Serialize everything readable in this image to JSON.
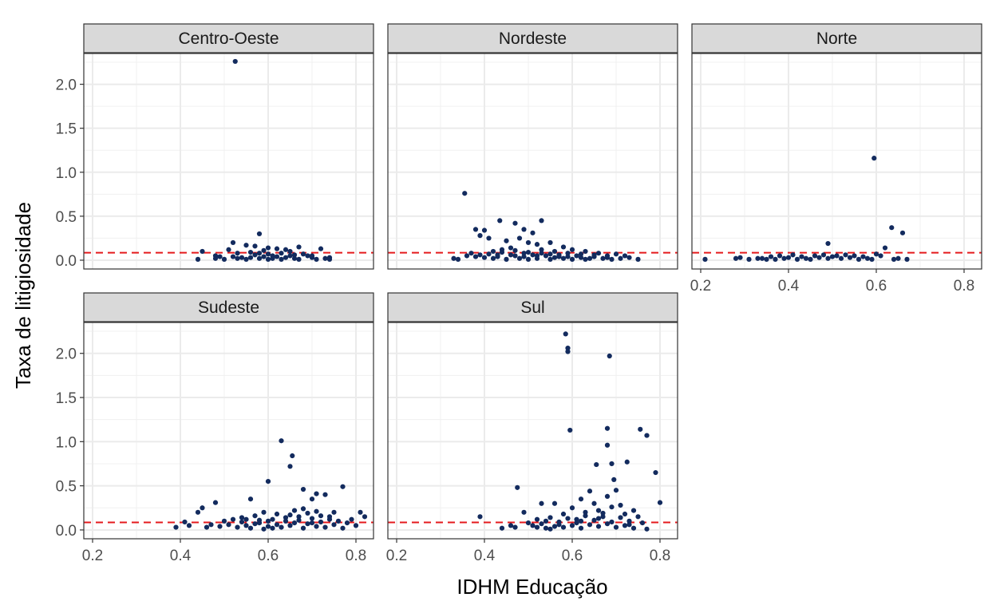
{
  "chart_data": {
    "type": "scatter",
    "facets": [
      "Centro-Oeste",
      "Nordeste",
      "Norte",
      "Sudeste",
      "Sul"
    ],
    "xlabel": "IDHM Educação",
    "ylabel": "Taxa de litigiosidade",
    "xlim": [
      0.18,
      0.84
    ],
    "ylim": [
      -0.1,
      2.35
    ],
    "x_ticks": [
      0.2,
      0.4,
      0.6,
      0.8
    ],
    "x_tick_labels": [
      "0.2",
      "0.4",
      "0.6",
      "0.8"
    ],
    "y_ticks": [
      0.0,
      0.5,
      1.0,
      1.5,
      2.0
    ],
    "y_tick_labels": [
      "0.0",
      "0.5",
      "1.0",
      "1.5",
      "2.0"
    ],
    "reference_line": {
      "y": 0.085,
      "color": "#e41a1c",
      "style": "dashed"
    },
    "point_color": "#132b5e",
    "grid": true,
    "panels": [
      {
        "name": "Centro-Oeste",
        "points": [
          [
            0.525,
            2.26
          ],
          [
            0.58,
            0.3
          ],
          [
            0.52,
            0.2
          ],
          [
            0.55,
            0.17
          ],
          [
            0.57,
            0.16
          ],
          [
            0.6,
            0.14
          ],
          [
            0.62,
            0.13
          ],
          [
            0.64,
            0.12
          ],
          [
            0.67,
            0.15
          ],
          [
            0.72,
            0.13
          ],
          [
            0.45,
            0.1
          ],
          [
            0.48,
            0.05
          ],
          [
            0.49,
            0.04
          ],
          [
            0.44,
            0.01
          ],
          [
            0.51,
            0.12
          ],
          [
            0.53,
            0.08
          ],
          [
            0.56,
            0.09
          ],
          [
            0.59,
            0.11
          ],
          [
            0.63,
            0.08
          ],
          [
            0.65,
            0.1
          ],
          [
            0.68,
            0.07
          ],
          [
            0.7,
            0.03
          ],
          [
            0.71,
            0.01
          ],
          [
            0.73,
            0.02
          ],
          [
            0.74,
            0.03
          ],
          [
            0.66,
            0.02
          ],
          [
            0.58,
            0.02
          ],
          [
            0.54,
            0.03
          ],
          [
            0.61,
            0.05
          ],
          [
            0.62,
            0.04
          ],
          [
            0.69,
            0.05
          ],
          [
            0.6,
            0.01
          ],
          [
            0.55,
            0.01
          ],
          [
            0.57,
            0.06
          ],
          [
            0.64,
            0.03
          ],
          [
            0.66,
            0.06
          ],
          [
            0.52,
            0.04
          ],
          [
            0.59,
            0.04
          ],
          [
            0.61,
            0.02
          ],
          [
            0.63,
            0.01
          ],
          [
            0.56,
            0.03
          ],
          [
            0.53,
            0.02
          ],
          [
            0.67,
            0.01
          ],
          [
            0.7,
            0.05
          ],
          [
            0.48,
            0.02
          ],
          [
            0.5,
            0.01
          ],
          [
            0.74,
            0.01
          ],
          [
            0.65,
            0.05
          ],
          [
            0.6,
            0.07
          ],
          [
            0.58,
            0.08
          ]
        ]
      },
      {
        "name": "Nordeste",
        "points": [
          [
            0.355,
            0.76
          ],
          [
            0.435,
            0.45
          ],
          [
            0.53,
            0.45
          ],
          [
            0.47,
            0.42
          ],
          [
            0.49,
            0.35
          ],
          [
            0.51,
            0.31
          ],
          [
            0.38,
            0.35
          ],
          [
            0.4,
            0.34
          ],
          [
            0.39,
            0.28
          ],
          [
            0.41,
            0.25
          ],
          [
            0.45,
            0.22
          ],
          [
            0.48,
            0.25
          ],
          [
            0.5,
            0.2
          ],
          [
            0.52,
            0.18
          ],
          [
            0.55,
            0.2
          ],
          [
            0.58,
            0.15
          ],
          [
            0.6,
            0.12
          ],
          [
            0.63,
            0.1
          ],
          [
            0.66,
            0.08
          ],
          [
            0.7,
            0.07
          ],
          [
            0.72,
            0.05
          ],
          [
            0.75,
            0.01
          ],
          [
            0.33,
            0.02
          ],
          [
            0.34,
            0.01
          ],
          [
            0.36,
            0.05
          ],
          [
            0.37,
            0.08
          ],
          [
            0.42,
            0.1
          ],
          [
            0.44,
            0.12
          ],
          [
            0.46,
            0.14
          ],
          [
            0.43,
            0.06
          ],
          [
            0.47,
            0.05
          ],
          [
            0.49,
            0.04
          ],
          [
            0.51,
            0.06
          ],
          [
            0.53,
            0.08
          ],
          [
            0.54,
            0.05
          ],
          [
            0.56,
            0.03
          ],
          [
            0.57,
            0.06
          ],
          [
            0.59,
            0.04
          ],
          [
            0.61,
            0.05
          ],
          [
            0.62,
            0.03
          ],
          [
            0.64,
            0.02
          ],
          [
            0.65,
            0.04
          ],
          [
            0.67,
            0.02
          ],
          [
            0.68,
            0.03
          ],
          [
            0.69,
            0.01
          ],
          [
            0.71,
            0.02
          ],
          [
            0.73,
            0.03
          ],
          [
            0.4,
            0.03
          ],
          [
            0.42,
            0.02
          ],
          [
            0.45,
            0.01
          ],
          [
            0.48,
            0.02
          ],
          [
            0.5,
            0.01
          ],
          [
            0.52,
            0.02
          ],
          [
            0.55,
            0.01
          ],
          [
            0.58,
            0.02
          ],
          [
            0.6,
            0.01
          ],
          [
            0.63,
            0.01
          ],
          [
            0.38,
            0.04
          ],
          [
            0.41,
            0.07
          ],
          [
            0.44,
            0.09
          ],
          [
            0.47,
            0.11
          ],
          [
            0.5,
            0.09
          ],
          [
            0.53,
            0.12
          ],
          [
            0.56,
            0.1
          ],
          [
            0.59,
            0.08
          ],
          [
            0.62,
            0.07
          ],
          [
            0.46,
            0.06
          ],
          [
            0.49,
            0.08
          ],
          [
            0.52,
            0.05
          ],
          [
            0.55,
            0.07
          ],
          [
            0.57,
            0.04
          ],
          [
            0.43,
            0.04
          ],
          [
            0.39,
            0.06
          ],
          [
            0.65,
            0.06
          ],
          [
            0.68,
            0.05
          ]
        ]
      },
      {
        "name": "Norte",
        "points": [
          [
            0.595,
            1.16
          ],
          [
            0.635,
            0.37
          ],
          [
            0.66,
            0.31
          ],
          [
            0.49,
            0.19
          ],
          [
            0.62,
            0.14
          ],
          [
            0.21,
            0.01
          ],
          [
            0.28,
            0.02
          ],
          [
            0.29,
            0.03
          ],
          [
            0.31,
            0.01
          ],
          [
            0.33,
            0.02
          ],
          [
            0.35,
            0.01
          ],
          [
            0.36,
            0.04
          ],
          [
            0.38,
            0.05
          ],
          [
            0.4,
            0.03
          ],
          [
            0.41,
            0.06
          ],
          [
            0.43,
            0.04
          ],
          [
            0.44,
            0.02
          ],
          [
            0.46,
            0.05
          ],
          [
            0.47,
            0.03
          ],
          [
            0.48,
            0.06
          ],
          [
            0.5,
            0.04
          ],
          [
            0.51,
            0.05
          ],
          [
            0.52,
            0.02
          ],
          [
            0.53,
            0.06
          ],
          [
            0.54,
            0.03
          ],
          [
            0.55,
            0.05
          ],
          [
            0.56,
            0.01
          ],
          [
            0.57,
            0.04
          ],
          [
            0.58,
            0.02
          ],
          [
            0.6,
            0.07
          ],
          [
            0.61,
            0.05
          ],
          [
            0.64,
            0.01
          ],
          [
            0.65,
            0.02
          ],
          [
            0.67,
            0.01
          ],
          [
            0.34,
            0.02
          ],
          [
            0.37,
            0.01
          ],
          [
            0.39,
            0.02
          ],
          [
            0.42,
            0.01
          ],
          [
            0.45,
            0.01
          ],
          [
            0.49,
            0.02
          ],
          [
            0.59,
            0.01
          ]
        ]
      },
      {
        "name": "Sudeste",
        "points": [
          [
            0.63,
            1.01
          ],
          [
            0.655,
            0.84
          ],
          [
            0.65,
            0.72
          ],
          [
            0.6,
            0.55
          ],
          [
            0.77,
            0.49
          ],
          [
            0.68,
            0.46
          ],
          [
            0.71,
            0.41
          ],
          [
            0.73,
            0.4
          ],
          [
            0.7,
            0.35
          ],
          [
            0.48,
            0.31
          ],
          [
            0.56,
            0.35
          ],
          [
            0.45,
            0.25
          ],
          [
            0.44,
            0.2
          ],
          [
            0.81,
            0.2
          ],
          [
            0.82,
            0.15
          ],
          [
            0.41,
            0.09
          ],
          [
            0.42,
            0.05
          ],
          [
            0.39,
            0.03
          ],
          [
            0.47,
            0.06
          ],
          [
            0.5,
            0.1
          ],
          [
            0.52,
            0.12
          ],
          [
            0.54,
            0.14
          ],
          [
            0.55,
            0.05
          ],
          [
            0.57,
            0.16
          ],
          [
            0.58,
            0.08
          ],
          [
            0.59,
            0.2
          ],
          [
            0.61,
            0.12
          ],
          [
            0.62,
            0.18
          ],
          [
            0.64,
            0.1
          ],
          [
            0.66,
            0.22
          ],
          [
            0.67,
            0.15
          ],
          [
            0.69,
            0.19
          ],
          [
            0.7,
            0.08
          ],
          [
            0.72,
            0.16
          ],
          [
            0.74,
            0.12
          ],
          [
            0.75,
            0.2
          ],
          [
            0.76,
            0.1
          ],
          [
            0.78,
            0.08
          ],
          [
            0.79,
            0.12
          ],
          [
            0.8,
            0.05
          ],
          [
            0.53,
            0.03
          ],
          [
            0.56,
            0.02
          ],
          [
            0.6,
            0.04
          ],
          [
            0.63,
            0.03
          ],
          [
            0.65,
            0.05
          ],
          [
            0.68,
            0.02
          ],
          [
            0.71,
            0.04
          ],
          [
            0.73,
            0.03
          ],
          [
            0.77,
            0.02
          ],
          [
            0.51,
            0.06
          ],
          [
            0.57,
            0.07
          ],
          [
            0.62,
            0.06
          ],
          [
            0.66,
            0.08
          ],
          [
            0.69,
            0.07
          ],
          [
            0.72,
            0.09
          ],
          [
            0.75,
            0.06
          ],
          [
            0.54,
            0.09
          ],
          [
            0.58,
            0.11
          ],
          [
            0.64,
            0.14
          ],
          [
            0.67,
            0.11
          ],
          [
            0.7,
            0.13
          ],
          [
            0.74,
            0.15
          ],
          [
            0.6,
            0.1
          ],
          [
            0.55,
            0.12
          ],
          [
            0.65,
            0.17
          ],
          [
            0.68,
            0.24
          ],
          [
            0.71,
            0.21
          ],
          [
            0.61,
            0.02
          ],
          [
            0.59,
            0.01
          ],
          [
            0.49,
            0.04
          ],
          [
            0.46,
            0.03
          ]
        ]
      },
      {
        "name": "Sul",
        "points": [
          [
            0.585,
            2.22
          ],
          [
            0.59,
            2.06
          ],
          [
            0.59,
            2.02
          ],
          [
            0.685,
            1.97
          ],
          [
            0.595,
            1.13
          ],
          [
            0.68,
            1.15
          ],
          [
            0.755,
            1.14
          ],
          [
            0.77,
            1.07
          ],
          [
            0.68,
            0.96
          ],
          [
            0.725,
            0.77
          ],
          [
            0.69,
            0.75
          ],
          [
            0.655,
            0.74
          ],
          [
            0.79,
            0.65
          ],
          [
            0.475,
            0.48
          ],
          [
            0.695,
            0.57
          ],
          [
            0.8,
            0.31
          ],
          [
            0.39,
            0.15
          ],
          [
            0.44,
            0.02
          ],
          [
            0.46,
            0.05
          ],
          [
            0.47,
            0.03
          ],
          [
            0.49,
            0.2
          ],
          [
            0.5,
            0.08
          ],
          [
            0.51,
            0.05
          ],
          [
            0.52,
            0.12
          ],
          [
            0.53,
            0.3
          ],
          [
            0.54,
            0.1
          ],
          [
            0.55,
            0.14
          ],
          [
            0.56,
            0.3
          ],
          [
            0.57,
            0.06
          ],
          [
            0.58,
            0.18
          ],
          [
            0.6,
            0.25
          ],
          [
            0.61,
            0.12
          ],
          [
            0.62,
            0.35
          ],
          [
            0.63,
            0.2
          ],
          [
            0.64,
            0.44
          ],
          [
            0.65,
            0.3
          ],
          [
            0.66,
            0.22
          ],
          [
            0.67,
            0.15
          ],
          [
            0.68,
            0.38
          ],
          [
            0.69,
            0.26
          ],
          [
            0.7,
            0.45
          ],
          [
            0.71,
            0.28
          ],
          [
            0.72,
            0.18
          ],
          [
            0.73,
            0.1
          ],
          [
            0.74,
            0.22
          ],
          [
            0.75,
            0.15
          ],
          [
            0.76,
            0.08
          ],
          [
            0.77,
            0.01
          ],
          [
            0.52,
            0.03
          ],
          [
            0.54,
            0.02
          ],
          [
            0.56,
            0.04
          ],
          [
            0.58,
            0.03
          ],
          [
            0.6,
            0.05
          ],
          [
            0.62,
            0.02
          ],
          [
            0.64,
            0.06
          ],
          [
            0.66,
            0.04
          ],
          [
            0.68,
            0.07
          ],
          [
            0.7,
            0.03
          ],
          [
            0.72,
            0.05
          ],
          [
            0.74,
            0.02
          ],
          [
            0.53,
            0.07
          ],
          [
            0.57,
            0.09
          ],
          [
            0.61,
            0.08
          ],
          [
            0.65,
            0.11
          ],
          [
            0.69,
            0.09
          ],
          [
            0.73,
            0.06
          ],
          [
            0.59,
            0.13
          ],
          [
            0.63,
            0.16
          ],
          [
            0.67,
            0.19
          ],
          [
            0.71,
            0.14
          ],
          [
            0.55,
            0.01
          ],
          [
            0.62,
            0.1
          ],
          [
            0.66,
            0.13
          ]
        ]
      }
    ]
  }
}
